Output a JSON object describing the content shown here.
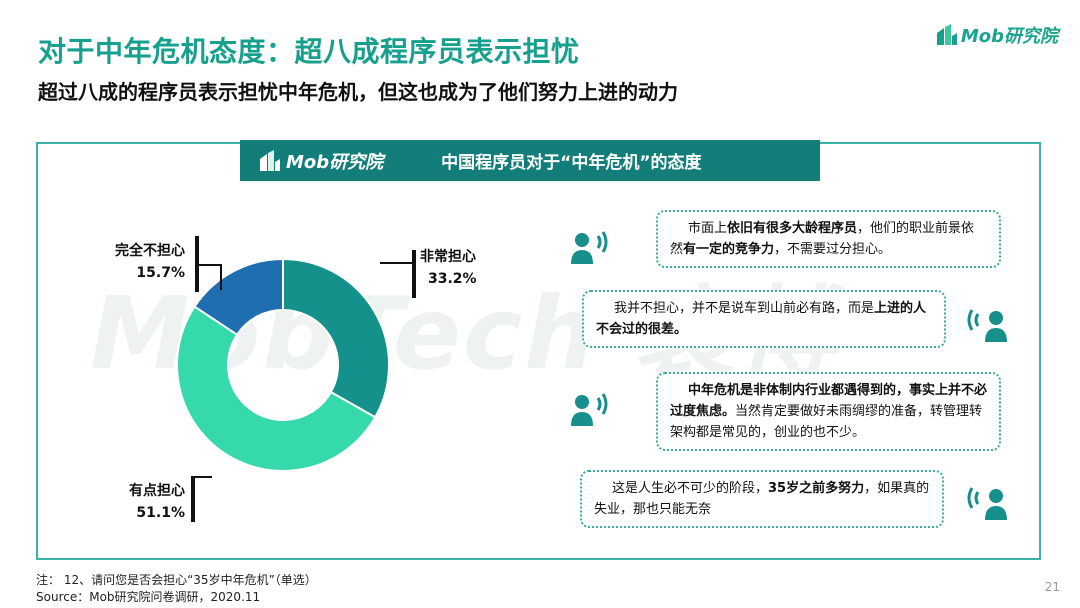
{
  "header": {
    "title": "对于中年危机态度：超八成程序员表示担忧",
    "subtitle": "超过八成的程序员表示担忧中年危机，但这也成为了他们努力上进的动力",
    "brand": "Mob研究院"
  },
  "panel": {
    "brand": "Mob研究院",
    "title": "中国程序员对于“中年危机”的态度",
    "watermark": "MobTech 袤博"
  },
  "chart_data": {
    "type": "pie",
    "title": "中国程序员对于“中年危机”的态度",
    "categories": [
      "非常担心",
      "有点担心",
      "完全不担心"
    ],
    "values": [
      33.2,
      51.1,
      15.7
    ],
    "labels": [
      "33.2%",
      "51.1%",
      "15.7%"
    ],
    "colors": [
      "#15918b",
      "#36d9ab",
      "#1f6eb0"
    ],
    "donut": true
  },
  "quotes": [
    {
      "text": "市面上依旧有很多大龄程序员，他们的职业前景依然有一定的竞争力，不需要过分担心。"
    },
    {
      "text": "我并不担心，并不是说车到山前必有路，而是上进的人不会过的很差。"
    },
    {
      "text": "中年危机是非体制内行业都遇得到的，事实上并不必过度焦虑。当然肯定要做好未雨绸缪的准备，转管理转架构都是常见的，创业的也不少。"
    },
    {
      "text": "这是人生必不可少的阶段，35岁之前多努力，如果真的失业，那也只能无奈"
    }
  ],
  "colors": {
    "accent": "#17a08e",
    "header_bg": "#127d79",
    "border": "#3ab4a6"
  },
  "footer": {
    "note": "注： 12、请问您是否会担心“35岁中年危机”（单选）",
    "source": "Source：Mob研究院问卷调研，2020.11",
    "page": "21"
  }
}
